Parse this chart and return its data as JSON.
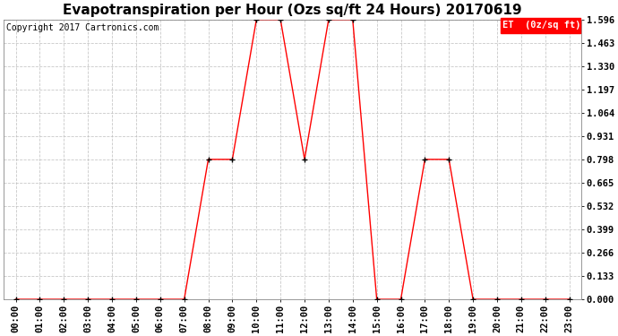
{
  "title": "Evapotranspiration per Hour (Ozs sq/ft 24 Hours) 20170619",
  "copyright": "Copyright 2017 Cartronics.com",
  "legend_label": "ET  (0z/sq ft)",
  "hours": [
    "00:00",
    "01:00",
    "02:00",
    "03:00",
    "04:00",
    "05:00",
    "06:00",
    "07:00",
    "08:00",
    "09:00",
    "10:00",
    "11:00",
    "12:00",
    "13:00",
    "14:00",
    "15:00",
    "16:00",
    "17:00",
    "18:00",
    "19:00",
    "20:00",
    "21:00",
    "22:00",
    "23:00"
  ],
  "values": [
    0.0,
    0.0,
    0.0,
    0.0,
    0.0,
    0.0,
    0.0,
    0.0,
    0.798,
    0.798,
    1.596,
    1.596,
    0.798,
    1.596,
    1.596,
    0.0,
    0.0,
    0.798,
    0.798,
    0.0,
    0.0,
    0.0,
    0.0,
    0.0
  ],
  "y_ticks": [
    0.0,
    0.133,
    0.266,
    0.399,
    0.532,
    0.665,
    0.798,
    0.931,
    1.064,
    1.197,
    1.33,
    1.463,
    1.596
  ],
  "ylim": [
    0.0,
    1.596
  ],
  "line_color": "red",
  "marker_color": "black",
  "background_color": "#ffffff",
  "grid_color": "#bbbbbb",
  "title_fontsize": 11,
  "copyright_fontsize": 7,
  "tick_fontsize": 7.5,
  "legend_bg": "red",
  "legend_text_color": "white",
  "legend_fontsize": 7.5
}
